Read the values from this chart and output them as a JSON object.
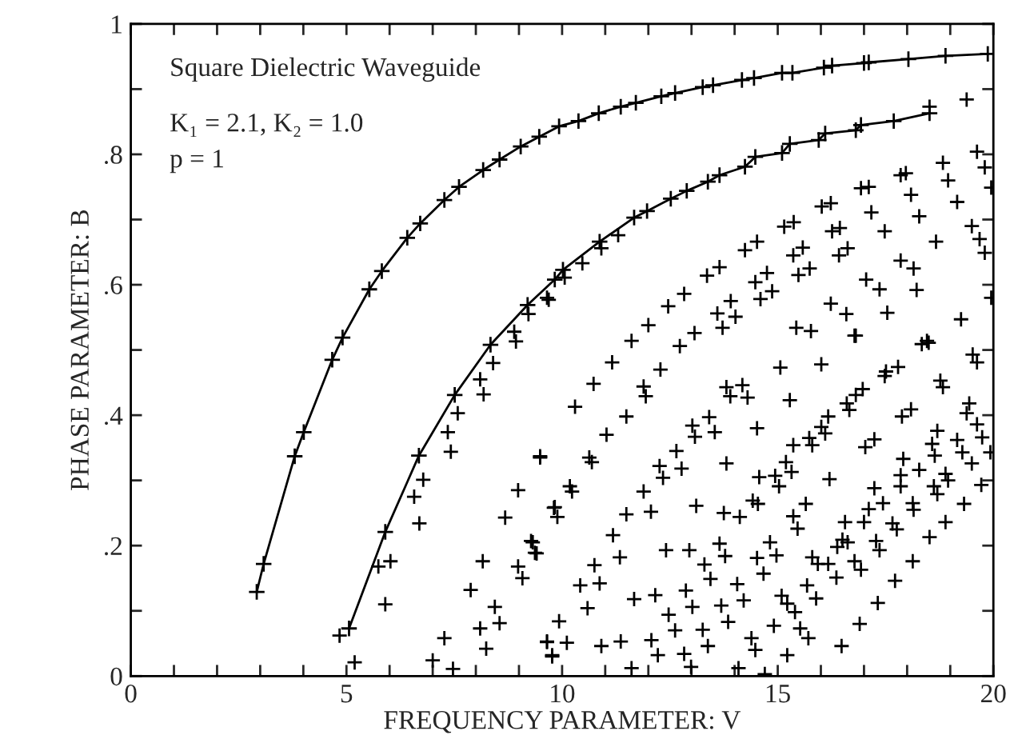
{
  "chart_data": {
    "type": "line",
    "xlabel": "FREQUENCY PARAMETER: V",
    "ylabel": "PHASE PARAMETER: B",
    "annotations": [
      "Square Dielectric Waveguide",
      "K₁ = 2.1, K₂ = 1.0",
      "p = 1"
    ],
    "xlim": [
      0,
      20
    ],
    "ylim": [
      0,
      1
    ],
    "xticks": [
      0,
      {
        "value": 1,
        "label": null
      },
      {
        "value": 2,
        "label": null
      },
      {
        "value": 3,
        "label": null
      },
      {
        "value": 4,
        "label": null
      },
      5,
      {
        "value": 6,
        "label": null
      },
      {
        "value": 7,
        "label": null
      },
      {
        "value": 8,
        "label": null
      },
      {
        "value": 9,
        "label": null
      },
      10,
      {
        "value": 11,
        "label": null
      },
      {
        "value": 12,
        "label": null
      },
      {
        "value": 13,
        "label": null
      },
      {
        "value": 14,
        "label": null
      },
      15,
      {
        "value": 16,
        "label": null
      },
      {
        "value": 17,
        "label": null
      },
      {
        "value": 18,
        "label": null
      },
      {
        "value": 19,
        "label": null
      },
      20
    ],
    "yticks": [
      0,
      {
        "value": 0.1,
        "label": null
      },
      {
        "value": 0.2,
        "label": ".2"
      },
      {
        "value": 0.3,
        "label": null
      },
      {
        "value": 0.4,
        "label": ".4"
      },
      {
        "value": 0.5,
        "label": null
      },
      {
        "value": 0.6,
        "label": ".6"
      },
      {
        "value": 0.7,
        "label": null
      },
      {
        "value": 0.8,
        "label": ".8"
      },
      {
        "value": 0.9,
        "label": null
      },
      1
    ],
    "grid": false,
    "legend": false,
    "series": [
      {
        "marker": "cross",
        "line_style": "solid",
        "color": "#000000",
        "x": [
          2.92,
          3.08,
          3.8,
          4.01,
          4.67,
          4.91,
          5.53,
          5.82,
          6.41,
          6.71,
          7.27,
          7.61,
          8.17,
          8.55,
          9.04,
          9.47,
          9.93,
          10.38,
          10.85,
          11.36,
          11.71,
          12.3,
          12.62,
          13.26,
          13.5,
          14.17,
          14.45,
          15.1,
          15.34,
          16.07,
          16.26,
          17.0,
          17.11,
          18.03,
          18.89,
          19.87
        ],
        "values": [
          0.129,
          0.172,
          0.337,
          0.374,
          0.485,
          0.519,
          0.593,
          0.621,
          0.672,
          0.694,
          0.73,
          0.75,
          0.776,
          0.792,
          0.812,
          0.827,
          0.843,
          0.851,
          0.863,
          0.873,
          0.879,
          0.889,
          0.894,
          0.903,
          0.906,
          0.914,
          0.917,
          0.925,
          0.925,
          0.933,
          0.936,
          0.94,
          0.941,
          0.946,
          0.951,
          0.954
        ]
      },
      {
        "marker": "cross",
        "line_style": "solid",
        "color": "#000000",
        "x": [
          5.06,
          5.9,
          6.68,
          7.51,
          8.34,
          9.2,
          9.83,
          10.02,
          10.87,
          11.67,
          11.97,
          12.52,
          12.89,
          13.38,
          13.65,
          14.24,
          14.48,
          15.1,
          15.28,
          15.95,
          16.1,
          16.81,
          16.93,
          17.69,
          18.52
        ],
        "values": [
          0.073,
          0.221,
          0.338,
          0.431,
          0.508,
          0.569,
          0.608,
          0.623,
          0.666,
          0.703,
          0.713,
          0.732,
          0.744,
          0.758,
          0.768,
          0.781,
          0.796,
          0.802,
          0.816,
          0.822,
          0.832,
          0.837,
          0.845,
          0.851,
          0.863
        ]
      },
      {
        "type": "scatter",
        "marker": "cross",
        "color": "#000000",
        "x": [
          4.84,
          5.19,
          5.74,
          6.02,
          5.9,
          6.57,
          6.78,
          6.69,
          7.0,
          7.27,
          7.47,
          7.35,
          7.42,
          7.58,
          7.88,
          8.1,
          8.18,
          8.4,
          8.16,
          8.1,
          8.24,
          8.44,
          8.55,
          8.68,
          8.89,
          8.93,
          8.98,
          8.98,
          9.08,
          9.22,
          9.32,
          9.41,
          9.49,
          9.65,
          9.69,
          9.77,
          9.81,
          9.65,
          10.06,
          10.47,
          10.91,
          11.3,
          11.61,
          12.0,
          12.46,
          12.83,
          12.73,
          13.07,
          13.36,
          13.65,
          13.6,
          13.91,
          14.02,
          13.72,
          14.24,
          14.52,
          14.48,
          14.75,
          14.6,
          14.87,
          15.15,
          15.37,
          15.36,
          15.58,
          15.48,
          15.74,
          15.43,
          15.77,
          16.02,
          16.23,
          16.26,
          16.44,
          16.42,
          16.62,
          16.23,
          16.59,
          16.81,
          16.93,
          17.11,
          17.17,
          17.48,
          17.05,
          17.36,
          17.54,
          17.85,
          18.15,
          18.22,
          17.85,
          17.97,
          18.09,
          18.28,
          18.67,
          18.46,
          18.83,
          18.95,
          19.16,
          19.38,
          19.5,
          19.68,
          19.8,
          19.62,
          19.8,
          19.25,
          19.95,
          19.95,
          18.52,
          9.28,
          9.37,
          9.49,
          9.65,
          9.77,
          9.83,
          9.89,
          9.93,
          10.11,
          10.18,
          10.23,
          10.3,
          10.42,
          10.59,
          10.63,
          10.69,
          10.73,
          10.75,
          10.87,
          10.91,
          11.03,
          11.16,
          11.18,
          11.34,
          11.36,
          11.49,
          11.49,
          11.67,
          11.61,
          11.89,
          11.89,
          11.94,
          12.06,
          12.07,
          12.16,
          12.22,
          12.26,
          12.28,
          12.34,
          12.41,
          12.47,
          12.62,
          12.65,
          12.77,
          12.83,
          12.87,
          12.95,
          12.99,
          13.02,
          13.02,
          13.08,
          13.11,
          13.26,
          13.3,
          13.38,
          13.41,
          13.44,
          13.54,
          13.65,
          13.69,
          13.75,
          13.78,
          13.81,
          13.81,
          13.85,
          13.9,
          14.06,
          14.09,
          14.12,
          14.18,
          14.21,
          14.3,
          14.39,
          14.42,
          14.48,
          14.52,
          14.52,
          14.54,
          14.57,
          14.67,
          14.7,
          14.82,
          14.91,
          14.94,
          14.97,
          15.03,
          15.06,
          15.09,
          15.19,
          15.22,
          15.22,
          15.28,
          15.32,
          15.36,
          15.36,
          15.4,
          15.46,
          15.52,
          15.65,
          15.68,
          15.71,
          15.73,
          15.8,
          15.8,
          15.89,
          15.93,
          16.01,
          16.01,
          16.1,
          16.17,
          16.17,
          16.2,
          16.36,
          16.38,
          16.48,
          16.5,
          16.56,
          16.6,
          16.62,
          16.66,
          16.78,
          16.78,
          16.81,
          16.9,
          16.93,
          16.97,
          17.0,
          17.03,
          17.11,
          17.24,
          17.24,
          17.28,
          17.32,
          17.36,
          17.44,
          17.48,
          17.51,
          17.66,
          17.72,
          17.76,
          17.79,
          17.85,
          17.85,
          17.88,
          17.91,
          18.09,
          18.13,
          18.13,
          18.15,
          18.28,
          18.34,
          18.5,
          18.52,
          18.58,
          18.62,
          18.64,
          18.7,
          18.7,
          18.77,
          18.83,
          18.89,
          18.89,
          18.95,
          19.16,
          19.28,
          19.32,
          19.38,
          19.44,
          19.5,
          19.52,
          19.62,
          19.62,
          19.72,
          19.74,
          19.93
        ],
        "values": [
          0.062,
          0.021,
          0.168,
          0.176,
          0.11,
          0.275,
          0.301,
          0.234,
          0.024,
          0.058,
          0.011,
          0.374,
          0.344,
          0.403,
          0.132,
          0.455,
          0.432,
          0.48,
          0.176,
          0.073,
          0.042,
          0.106,
          0.081,
          0.243,
          0.528,
          0.513,
          0.285,
          0.168,
          0.15,
          0.555,
          0.205,
          0.188,
          0.337,
          0.052,
          0.577,
          0.032,
          0.258,
          0.58,
          0.611,
          0.633,
          0.656,
          0.676,
          0.514,
          0.538,
          0.567,
          0.586,
          0.506,
          0.526,
          0.614,
          0.627,
          0.556,
          0.575,
          0.551,
          0.534,
          0.653,
          0.666,
          0.604,
          0.618,
          0.578,
          0.59,
          0.689,
          0.696,
          0.645,
          0.657,
          0.615,
          0.625,
          0.534,
          0.529,
          0.72,
          0.725,
          0.682,
          0.687,
          0.645,
          0.656,
          0.571,
          0.555,
          0.522,
          0.748,
          0.75,
          0.711,
          0.682,
          0.608,
          0.593,
          0.557,
          0.637,
          0.625,
          0.592,
          0.768,
          0.771,
          0.738,
          0.705,
          0.666,
          0.514,
          0.787,
          0.76,
          0.727,
          0.884,
          0.69,
          0.67,
          0.649,
          0.804,
          0.78,
          0.547,
          0.749,
          0.58,
          0.873,
          0.207,
          0.189,
          0.335,
          0.053,
          0.03,
          0.259,
          0.244,
          0.084,
          0.051,
          0.291,
          0.283,
          0.413,
          0.139,
          0.104,
          0.335,
          0.328,
          0.448,
          0.17,
          0.142,
          0.046,
          0.37,
          0.481,
          0.216,
          0.182,
          0.053,
          0.248,
          0.398,
          0.118,
          0.012,
          0.444,
          0.283,
          0.429,
          0.252,
          0.055,
          0.124,
          0.032,
          0.322,
          0.47,
          0.304,
          0.193,
          0.094,
          0.07,
          0.345,
          0.318,
          0.034,
          0.131,
          0.193,
          0.014,
          0.384,
          0.106,
          0.367,
          0.261,
          0.071,
          0.171,
          0.046,
          0.397,
          0.149,
          0.374,
          0.203,
          0.108,
          0.25,
          0.184,
          0.326,
          0.443,
          0.083,
          0.429,
          0.141,
          0.012,
          0.244,
          0.446,
          0.116,
          0.427,
          0.058,
          0.269,
          0.04,
          0.38,
          0.181,
          0.264,
          0.305,
          0.157,
          0.003,
          0.205,
          0.077,
          0.307,
          0.185,
          0.291,
          0.473,
          0.123,
          0.328,
          0.111,
          0.032,
          0.423,
          0.313,
          0.354,
          0.245,
          0.098,
          0.226,
          0.073,
          0.264,
          0.139,
          0.058,
          0.365,
          0.182,
          0.354,
          0.119,
          0.172,
          0.478,
          0.382,
          0.372,
          0.398,
          0.172,
          0.302,
          0.151,
          0.198,
          0.046,
          0.209,
          0.236,
          0.418,
          0.205,
          0.408,
          0.522,
          0.176,
          0.431,
          0.08,
          0.163,
          0.44,
          0.236,
          0.351,
          0.256,
          0.363,
          0.288,
          0.207,
          0.112,
          0.193,
          0.265,
          0.46,
          0.467,
          0.234,
          0.146,
          0.225,
          0.474,
          0.308,
          0.291,
          0.398,
          0.333,
          0.409,
          0.176,
          0.265,
          0.255,
          0.316,
          0.509,
          0.511,
          0.213,
          0.356,
          0.291,
          0.338,
          0.376,
          0.279,
          0.453,
          0.443,
          0.31,
          0.236,
          0.3,
          0.362,
          0.343,
          0.264,
          0.403,
          0.418,
          0.326,
          0.493,
          0.481,
          0.386,
          0.293,
          0.366,
          0.343
        ]
      }
    ]
  }
}
